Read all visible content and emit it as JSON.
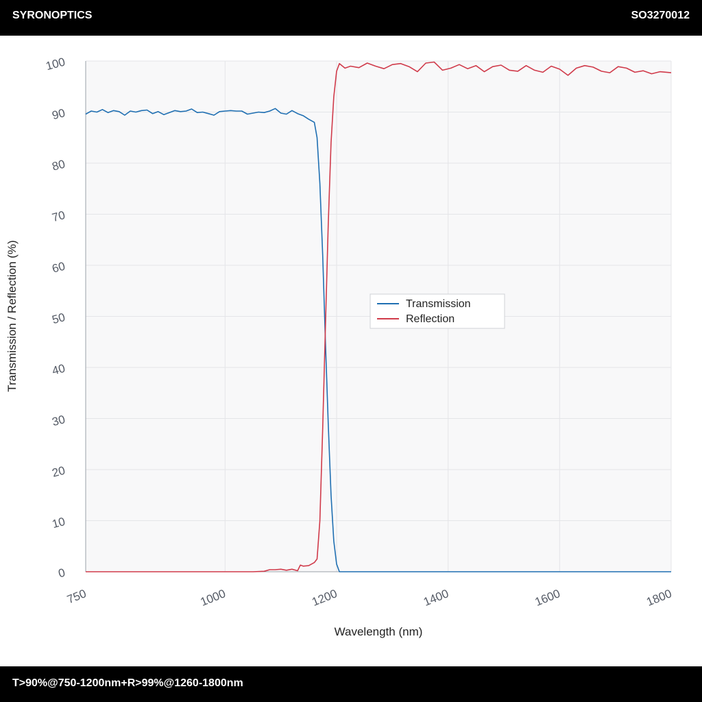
{
  "header": {
    "brand": "SYRONOPTICS",
    "code": "SO3270012"
  },
  "footer": {
    "spec": "T>90%@750-1200nm+R>99%@1260-1800nm"
  },
  "colors": {
    "transmission": "#1f6fb2",
    "reflection": "#d03a4a",
    "plot_bg": "#f8f8f9",
    "grid": "#e4e5e8"
  },
  "chart_data": {
    "type": "line",
    "title": "",
    "xlabel": "Wavelength (nm)",
    "ylabel": "Transmission / Reflection (%)",
    "xlim": [
      750,
      1800
    ],
    "ylim": [
      0,
      100
    ],
    "x_ticks": [
      750,
      1000,
      1200,
      1400,
      1600,
      1800
    ],
    "y_ticks": [
      0,
      10,
      20,
      30,
      40,
      50,
      60,
      70,
      80,
      90,
      100
    ],
    "grid": true,
    "legend_position": "center",
    "series": [
      {
        "name": "Transmission",
        "color": "#1f6fb2",
        "points": [
          [
            750,
            89.6
          ],
          [
            760,
            90.2
          ],
          [
            770,
            90.0
          ],
          [
            780,
            90.5
          ],
          [
            790,
            89.9
          ],
          [
            800,
            90.3
          ],
          [
            810,
            90.1
          ],
          [
            820,
            89.4
          ],
          [
            830,
            90.2
          ],
          [
            840,
            90.0
          ],
          [
            850,
            90.3
          ],
          [
            860,
            90.4
          ],
          [
            870,
            89.7
          ],
          [
            880,
            90.1
          ],
          [
            890,
            89.5
          ],
          [
            900,
            89.9
          ],
          [
            910,
            90.3
          ],
          [
            920,
            90.1
          ],
          [
            930,
            90.2
          ],
          [
            940,
            90.6
          ],
          [
            950,
            89.9
          ],
          [
            960,
            90.0
          ],
          [
            970,
            89.7
          ],
          [
            980,
            89.4
          ],
          [
            990,
            90.1
          ],
          [
            1000,
            90.2
          ],
          [
            1010,
            90.3
          ],
          [
            1020,
            90.2
          ],
          [
            1030,
            90.2
          ],
          [
            1040,
            89.6
          ],
          [
            1050,
            89.8
          ],
          [
            1060,
            90.0
          ],
          [
            1070,
            89.9
          ],
          [
            1080,
            90.2
          ],
          [
            1090,
            90.7
          ],
          [
            1100,
            89.8
          ],
          [
            1110,
            89.6
          ],
          [
            1120,
            90.3
          ],
          [
            1130,
            89.7
          ],
          [
            1140,
            89.3
          ],
          [
            1150,
            88.6
          ],
          [
            1160,
            88.0
          ],
          [
            1165,
            85.0
          ],
          [
            1170,
            76.0
          ],
          [
            1175,
            62.0
          ],
          [
            1180,
            45.0
          ],
          [
            1185,
            29.0
          ],
          [
            1190,
            15.0
          ],
          [
            1195,
            6.0
          ],
          [
            1200,
            1.5
          ],
          [
            1205,
            0.0
          ],
          [
            1250,
            0.0
          ],
          [
            1300,
            0.0
          ],
          [
            1400,
            0.0
          ],
          [
            1500,
            0.0
          ],
          [
            1600,
            0.0
          ],
          [
            1700,
            0.0
          ],
          [
            1800,
            0.0
          ]
        ]
      },
      {
        "name": "Reflection",
        "color": "#d03a4a",
        "points": [
          [
            750,
            0.0
          ],
          [
            800,
            0.0
          ],
          [
            850,
            0.0
          ],
          [
            900,
            0.0
          ],
          [
            950,
            0.0
          ],
          [
            1000,
            0.0
          ],
          [
            1050,
            0.0
          ],
          [
            1070,
            0.1
          ],
          [
            1080,
            0.4
          ],
          [
            1090,
            0.4
          ],
          [
            1100,
            0.5
          ],
          [
            1110,
            0.3
          ],
          [
            1120,
            0.5
          ],
          [
            1130,
            0.2
          ],
          [
            1135,
            1.3
          ],
          [
            1140,
            1.1
          ],
          [
            1150,
            1.2
          ],
          [
            1160,
            1.8
          ],
          [
            1165,
            2.5
          ],
          [
            1170,
            10.0
          ],
          [
            1175,
            28.0
          ],
          [
            1180,
            48.0
          ],
          [
            1185,
            68.0
          ],
          [
            1190,
            84.0
          ],
          [
            1195,
            93.0
          ],
          [
            1200,
            98.0
          ],
          [
            1205,
            99.5
          ],
          [
            1215,
            98.6
          ],
          [
            1225,
            99.0
          ],
          [
            1240,
            98.7
          ],
          [
            1255,
            99.6
          ],
          [
            1270,
            99.0
          ],
          [
            1285,
            98.5
          ],
          [
            1300,
            99.3
          ],
          [
            1315,
            99.5
          ],
          [
            1330,
            98.9
          ],
          [
            1345,
            97.9
          ],
          [
            1360,
            99.6
          ],
          [
            1375,
            99.8
          ],
          [
            1390,
            98.2
          ],
          [
            1405,
            98.6
          ],
          [
            1420,
            99.3
          ],
          [
            1435,
            98.5
          ],
          [
            1450,
            99.1
          ],
          [
            1465,
            97.9
          ],
          [
            1480,
            98.9
          ],
          [
            1495,
            99.2
          ],
          [
            1510,
            98.2
          ],
          [
            1525,
            98.0
          ],
          [
            1540,
            99.1
          ],
          [
            1555,
            98.2
          ],
          [
            1570,
            97.8
          ],
          [
            1585,
            99.0
          ],
          [
            1600,
            98.4
          ],
          [
            1615,
            97.2
          ],
          [
            1630,
            98.6
          ],
          [
            1645,
            99.1
          ],
          [
            1660,
            98.8
          ],
          [
            1675,
            98.0
          ],
          [
            1690,
            97.7
          ],
          [
            1705,
            98.9
          ],
          [
            1720,
            98.6
          ],
          [
            1735,
            97.8
          ],
          [
            1750,
            98.1
          ],
          [
            1765,
            97.5
          ],
          [
            1780,
            97.9
          ],
          [
            1800,
            97.7
          ]
        ]
      }
    ]
  }
}
